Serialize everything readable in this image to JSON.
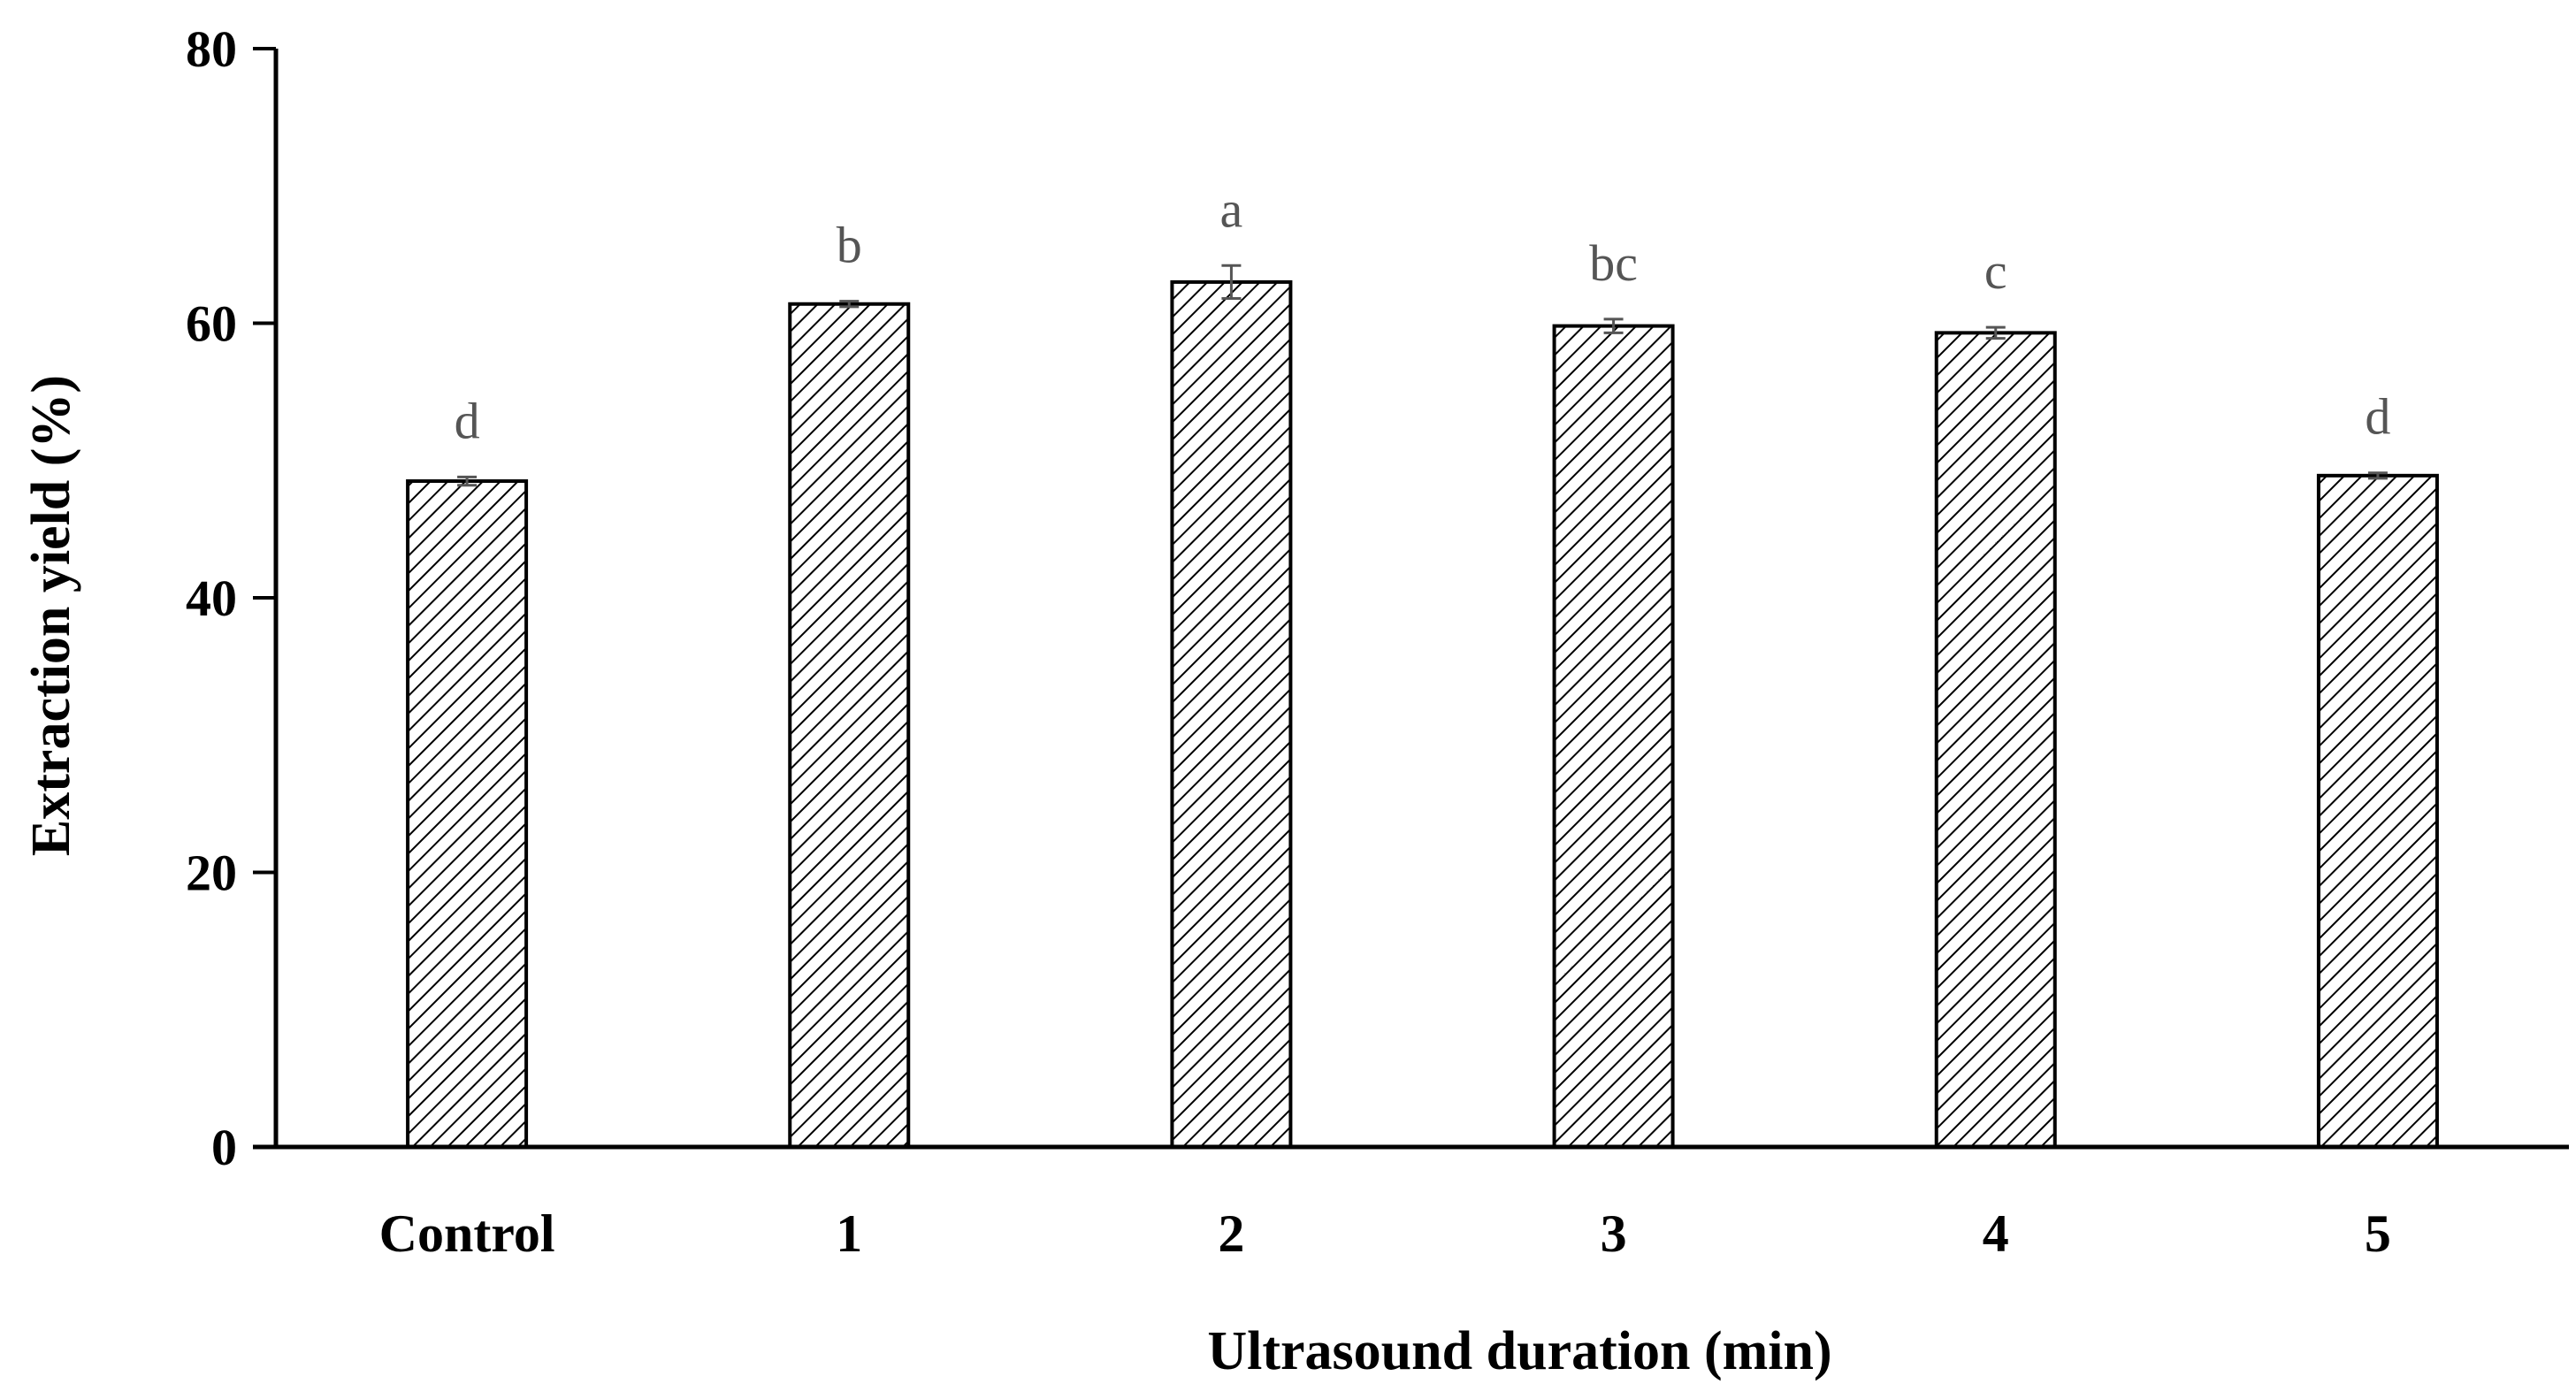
{
  "chart_data": {
    "type": "bar",
    "title": "",
    "xlabel": "Ultrasound duration (min)",
    "ylabel": "Extraction yield (%)",
    "ylim": [
      0,
      80
    ],
    "yticks": [
      0,
      20,
      40,
      60,
      80
    ],
    "categories": [
      "Control",
      "1",
      "2",
      "3",
      "4",
      "5"
    ],
    "values": [
      48.5,
      61.4,
      63.0,
      59.8,
      59.3,
      48.9
    ],
    "errors": [
      0.3,
      0.2,
      1.2,
      0.5,
      0.4,
      0.2
    ],
    "significance_labels": [
      "d",
      "b",
      "a",
      "bc",
      "c",
      "d"
    ],
    "grid": false,
    "legend": "none",
    "bar_fill": "hatched",
    "bar_edge_color": "#000000",
    "label_color": "#555555"
  }
}
